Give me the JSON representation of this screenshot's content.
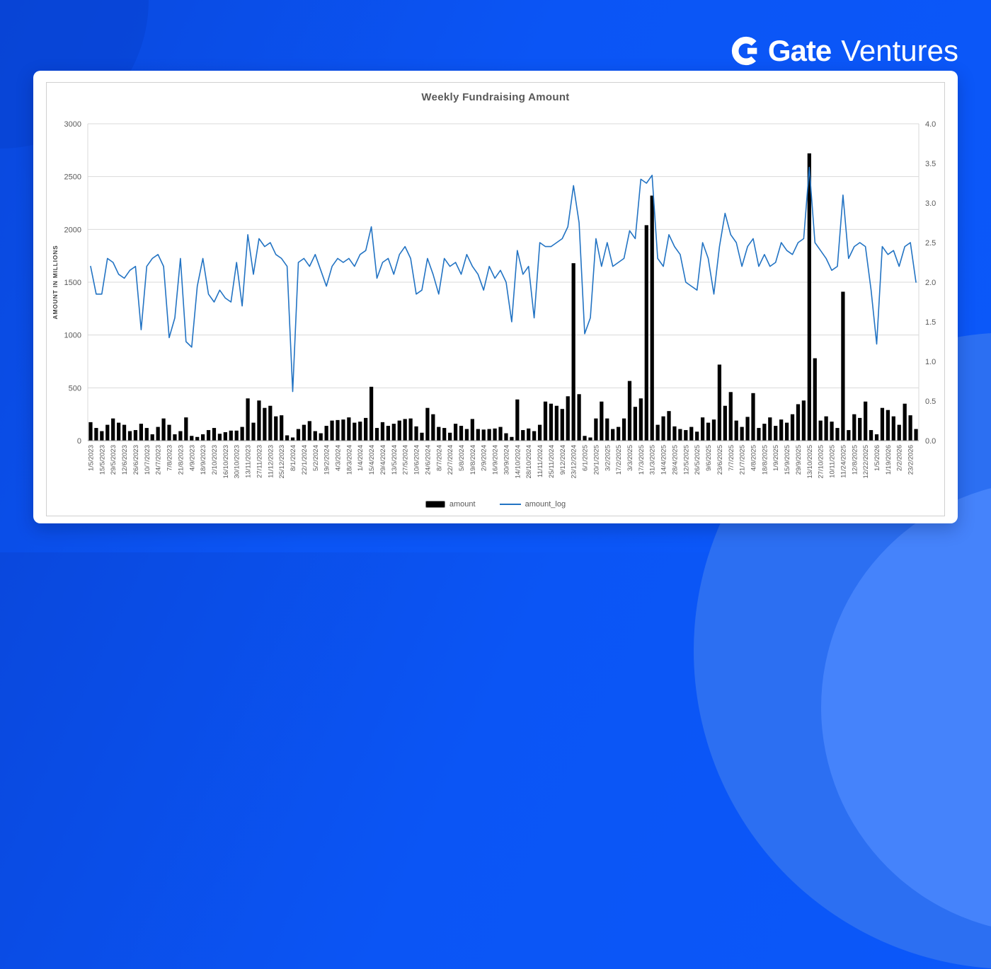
{
  "logo": {
    "brand_bold": "Gate",
    "brand_light": "Ventures"
  },
  "colors": {
    "page_background": "#0b55f5",
    "corner_accent_light": "#2c6ff2",
    "corner_accent_lighter": "#4583fb",
    "card": "#ffffff",
    "bar": "#000000",
    "line": "#2273c3",
    "axis_text": "#595959"
  },
  "chart_data": {
    "type": "bar",
    "subtype": "combo-bar-line-dual-axis",
    "title": "Weekly Fundraising Amount",
    "grid": true,
    "legend_position": "bottom",
    "left_axis": {
      "label": "AMOUNT IN MILLIONS",
      "min": 0,
      "max": 3000,
      "ticks": [
        0,
        500,
        1000,
        1500,
        2000,
        2500,
        3000
      ]
    },
    "right_axis": {
      "label": "",
      "min": 0,
      "max": 4,
      "ticks": [
        0,
        0.5,
        1,
        1.5,
        2,
        2.5,
        3,
        3.5,
        4
      ]
    },
    "label_every": 2,
    "x_tick_labels": [
      "1/5/2023",
      "15/5/2023",
      "29/5/2023",
      "12/6/2023",
      "26/6/2023",
      "10/7/2023",
      "24/7/2023",
      "7/8/2023",
      "21/8/2023",
      "4/9/2023",
      "18/9/2023",
      "2/10/2023",
      "16/10/2023",
      "30/10/2023",
      "13/11/2023",
      "27/11/2023",
      "11/12/2023",
      "25/12/2023",
      "8/1/2024",
      "22/1/2024",
      "5/2/2024",
      "19/2/2024",
      "4/3/2024",
      "18/3/2024",
      "1/4/2024",
      "15/4/2024",
      "29/4/2024",
      "13/5/2024",
      "27/5/2024",
      "10/6/2024",
      "24/6/2024",
      "8/7/2024",
      "22/7/2024",
      "5/8/2024",
      "19/8/2024",
      "2/9/2024",
      "16/9/2024",
      "30/9/2024",
      "14/10/2024",
      "28/10/2024",
      "11/11/2024",
      "25/11/2024",
      "9/12/2024",
      "23/12/2024",
      "6/1/2025",
      "20/1/2025",
      "3/2/2025",
      "17/2/2025",
      "3/3/2025",
      "17/3/2025",
      "31/3/2025",
      "14/4/2025",
      "28/4/2025",
      "12/5/2025",
      "26/5/2025",
      "9/6/2025",
      "23/6/2025",
      "7/7/2025",
      "21/7/2025",
      "4/8/2025",
      "18/8/2025",
      "1/9/2025",
      "15/9/2025",
      "29/9/2025",
      "13/10/2025",
      "27/10/2025",
      "10/11/2025",
      "11/24/2025",
      "12/8/2025",
      "12/22/2025",
      "1/5/2026",
      "1/19/2026",
      "2/2/2026",
      "23/2/2026"
    ],
    "legend": [
      {
        "label": "amount",
        "type": "bar",
        "color": "#000000"
      },
      {
        "label": "amount_log",
        "type": "line",
        "color": "#2273c3"
      }
    ],
    "series": [
      {
        "name": "amount",
        "type": "bar",
        "axis": "left",
        "color": "#000000",
        "values": [
          175,
          120,
          90,
          150,
          210,
          170,
          150,
          90,
          100,
          160,
          120,
          60,
          130,
          210,
          150,
          60,
          90,
          220,
          45,
          35,
          60,
          100,
          120,
          65,
          80,
          95,
          95,
          130,
          400,
          170,
          380,
          310,
          330,
          230,
          240,
          50,
          30,
          110,
          150,
          185,
          90,
          70,
          140,
          190,
          195,
          200,
          220,
          170,
          180,
          215,
          510,
          120,
          175,
          140,
          160,
          190,
          205,
          210,
          135,
          75,
          310,
          250,
          130,
          120,
          75,
          160,
          140,
          110,
          205,
          110,
          105,
          110,
          115,
          130,
          70,
          35,
          390,
          100,
          115,
          90,
          150,
          370,
          350,
          330,
          300,
          420,
          1680,
          440,
          45,
          30,
          210,
          370,
          210,
          110,
          130,
          210,
          565,
          320,
          400,
          2040,
          2320,
          150,
          230,
          280,
          135,
          110,
          100,
          130,
          85,
          220,
          170,
          200,
          720,
          330,
          460,
          190,
          130,
          225,
          450,
          120,
          160,
          220,
          140,
          200,
          170,
          250,
          345,
          380,
          2720,
          780,
          190,
          230,
          180,
          120,
          1410,
          100,
          250,
          215,
          370,
          100,
          60,
          310,
          290,
          230,
          150,
          350,
          240,
          110
        ]
      },
      {
        "name": "amount_log",
        "type": "line",
        "axis": "right",
        "color": "#2273c3",
        "values": [
          2.2,
          1.85,
          1.85,
          2.3,
          2.25,
          2.1,
          2.05,
          2.15,
          2.2,
          1.4,
          2.2,
          2.3,
          2.35,
          2.2,
          1.3,
          1.55,
          2.3,
          1.25,
          1.18,
          1.95,
          2.3,
          1.85,
          1.75,
          1.9,
          1.8,
          1.75,
          2.25,
          1.7,
          2.6,
          2.1,
          2.55,
          2.45,
          2.5,
          2.35,
          2.3,
          2.2,
          0.62,
          2.25,
          2.3,
          2.2,
          2.35,
          2.15,
          1.95,
          2.2,
          2.3,
          2.25,
          2.3,
          2.2,
          2.35,
          2.4,
          2.7,
          2.05,
          2.25,
          2.3,
          2.1,
          2.35,
          2.45,
          2.3,
          1.85,
          1.9,
          2.3,
          2.1,
          1.85,
          2.3,
          2.2,
          2.25,
          2.1,
          2.35,
          2.2,
          2.1,
          1.9,
          2.2,
          2.05,
          2.15,
          2.0,
          1.5,
          2.4,
          2.1,
          2.2,
          1.55,
          2.5,
          2.45,
          2.45,
          2.5,
          2.55,
          2.7,
          3.22,
          2.75,
          1.35,
          1.55,
          2.55,
          2.2,
          2.5,
          2.2,
          2.25,
          2.3,
          2.65,
          2.55,
          3.3,
          3.25,
          3.35,
          2.3,
          2.2,
          2.6,
          2.45,
          2.35,
          2.0,
          1.95,
          1.9,
          2.5,
          2.3,
          1.85,
          2.45,
          2.87,
          2.6,
          2.5,
          2.2,
          2.45,
          2.55,
          2.2,
          2.35,
          2.2,
          2.25,
          2.5,
          2.4,
          2.35,
          2.5,
          2.55,
          3.45,
          2.5,
          2.4,
          2.3,
          2.15,
          2.2,
          3.1,
          2.3,
          2.45,
          2.5,
          2.45,
          1.9,
          1.22,
          2.45,
          2.35,
          2.4,
          2.2,
          2.45,
          2.5,
          2.0
        ]
      }
    ]
  }
}
